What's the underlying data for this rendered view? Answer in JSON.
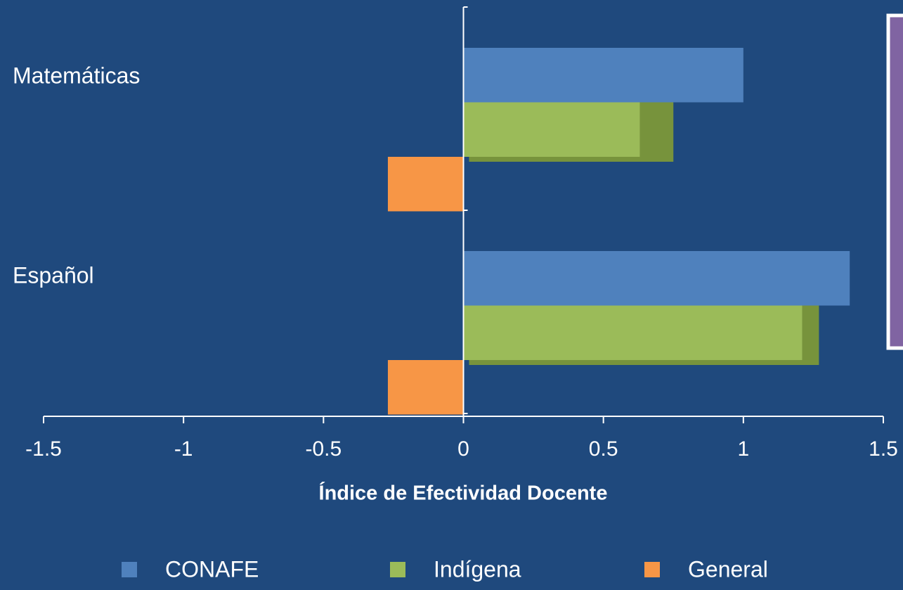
{
  "chart_data": {
    "type": "hbar",
    "xlabel": "Índice de Efectividad Docente",
    "categories": [
      "Matemáticas",
      "Español"
    ],
    "series": [
      {
        "name": "CONAFE",
        "color": "#4f81bd",
        "values": [
          1.0,
          1.38
        ]
      },
      {
        "name": "Indígena",
        "color": "#9bbb59",
        "values": [
          0.63,
          1.21
        ]
      },
      {
        "name": "General",
        "color": "#f79646",
        "values": [
          -0.27,
          -0.27
        ]
      },
      {
        "color": "#77933c",
        "values": [
          0.75,
          1.27
        ]
      }
    ],
    "xlim": [
      -1.5,
      1.5
    ],
    "xticks": [
      -1.5,
      -1,
      -0.5,
      0,
      0.5,
      1,
      1.5
    ],
    "legend": "bottom"
  }
}
